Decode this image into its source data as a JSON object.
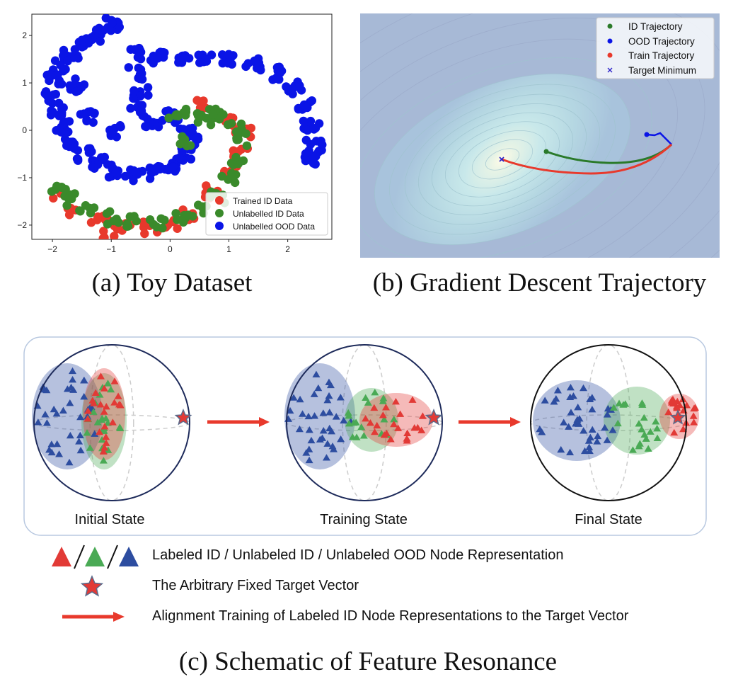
{
  "captions": {
    "a": "(a)  Toy Dataset",
    "b": "(b)  Gradient Descent Trajectory",
    "c": "(c)  Schematic of Feature Resonance"
  },
  "colors": {
    "red": "#e8392c",
    "green": "#3a8a2b",
    "blue": "#0a14e6",
    "schem_blue": "#2d4da0",
    "schem_green": "#4aaa55",
    "schem_red": "#e23a36",
    "arrow": "#e8392c"
  },
  "chart_data": [
    {
      "type": "scatter",
      "xlim": [
        -2.35,
        2.75
      ],
      "ylim": [
        -2.3,
        2.45
      ],
      "xticks": [
        "-2",
        "-1",
        "0",
        "1",
        "2"
      ],
      "yticks": [
        "-2",
        "-1",
        "0",
        "1",
        "2"
      ],
      "grid": false,
      "legend_position": "bottom-right",
      "legend": [
        "Trained ID Data",
        "Unlabelled ID Data",
        "Unlabelled OOD Data"
      ],
      "series": [
        {
          "name": "Unlabelled OOD Data",
          "color": "#0a14e6",
          "description": "two interleaved blue spiral arms (approximate sample)",
          "points": [
            [
              -0.95,
              2.25
            ],
            [
              -1.1,
              2.15
            ],
            [
              -1.3,
              2.0
            ],
            [
              -1.5,
              1.85
            ],
            [
              -1.7,
              1.6
            ],
            [
              -1.85,
              1.35
            ],
            [
              -1.95,
              1.05
            ],
            [
              -2.0,
              0.7
            ],
            [
              -1.95,
              0.35
            ],
            [
              -1.85,
              0.05
            ],
            [
              -1.7,
              -0.25
            ],
            [
              -1.45,
              -0.5
            ],
            [
              -1.2,
              -0.7
            ],
            [
              -0.9,
              -0.85
            ],
            [
              -0.6,
              -0.95
            ],
            [
              -0.3,
              -0.9
            ],
            [
              0.0,
              -0.75
            ],
            [
              0.25,
              -0.5
            ],
            [
              0.35,
              -0.2
            ],
            [
              0.3,
              0.0
            ],
            [
              -0.6,
              1.2
            ],
            [
              -0.5,
              0.8
            ],
            [
              -0.55,
              0.4
            ],
            [
              -0.3,
              0.2
            ],
            [
              0.0,
              0.3
            ],
            [
              -0.6,
              1.6
            ],
            [
              -0.2,
              1.55
            ],
            [
              0.2,
              1.5
            ],
            [
              0.6,
              1.55
            ],
            [
              1.0,
              1.5
            ],
            [
              1.4,
              1.4
            ],
            [
              1.8,
              1.2
            ],
            [
              2.1,
              0.9
            ],
            [
              2.3,
              0.5
            ],
            [
              2.4,
              0.1
            ],
            [
              2.45,
              -0.3
            ],
            [
              2.4,
              -0.6
            ],
            [
              -1.6,
              0.95
            ],
            [
              -1.4,
              0.3
            ],
            [
              -0.9,
              0.0
            ]
          ]
        },
        {
          "name": "Unlabelled ID Data",
          "color": "#3a8a2b",
          "description": "green inner spiral arm (approximate sample)",
          "points": [
            [
              0.1,
              0.3
            ],
            [
              0.4,
              0.4
            ],
            [
              0.8,
              0.35
            ],
            [
              1.1,
              0.1
            ],
            [
              1.2,
              -0.2
            ],
            [
              1.15,
              -0.6
            ],
            [
              1.0,
              -1.0
            ],
            [
              0.8,
              -1.4
            ],
            [
              0.5,
              -1.7
            ],
            [
              0.2,
              -1.85
            ],
            [
              -0.2,
              -1.95
            ],
            [
              -0.6,
              -1.95
            ],
            [
              -1.0,
              -1.85
            ],
            [
              -1.4,
              -1.7
            ],
            [
              -1.75,
              -1.45
            ],
            [
              -1.9,
              -1.3
            ],
            [
              0.3,
              -0.2
            ],
            [
              0.6,
              0.2
            ]
          ]
        },
        {
          "name": "Trained ID Data",
          "color": "#e8392c",
          "description": "red labeled points interspersed along the green arm (approximate sample)",
          "points": [
            [
              0.5,
              0.5
            ],
            [
              0.95,
              0.2
            ],
            [
              1.25,
              0.0
            ],
            [
              1.2,
              -0.5
            ],
            [
              1.05,
              -0.85
            ],
            [
              0.7,
              -1.3
            ],
            [
              0.35,
              -1.8
            ],
            [
              0.0,
              -1.95
            ],
            [
              -0.35,
              -2.05
            ],
            [
              -0.8,
              -2.05
            ],
            [
              -1.2,
              -1.9
            ],
            [
              -1.6,
              -1.65
            ],
            [
              -1.95,
              -1.3
            ],
            [
              -1.0,
              -2.15
            ]
          ]
        }
      ]
    },
    {
      "type": "line",
      "background": "loss-landscape contour (elliptical basin around the target minimum)",
      "legend_position": "top-right",
      "legend": [
        "ID Trajectory",
        "OOD Trajectory",
        "Train Trajectory",
        "Target Minimum"
      ],
      "series": [
        {
          "name": "ID Trajectory",
          "color": "#2a7a2a",
          "role": "path from start (right) to end (middle)"
        },
        {
          "name": "OOD Trajectory",
          "color": "#0a14e6",
          "role": "short path near start"
        },
        {
          "name": "Train Trajectory",
          "color": "#e8392c",
          "role": "path from start to target minimum"
        },
        {
          "name": "Target Minimum",
          "color": "#1a1ae0",
          "marker": "x"
        }
      ]
    }
  ],
  "schematic": {
    "states": [
      "Initial State",
      "Training State",
      "Final State"
    ],
    "legend": [
      {
        "icon": "triangle-trio-icon",
        "text": "Labeled ID / Unlabeled ID / Unlabeled OOD Node Representation"
      },
      {
        "icon": "star-icon",
        "text": "The Arbitrary Fixed Target Vector"
      },
      {
        "icon": "red-arrow-icon",
        "text": "Alignment Training of Labeled ID Node Representations to the Target Vector"
      }
    ]
  }
}
